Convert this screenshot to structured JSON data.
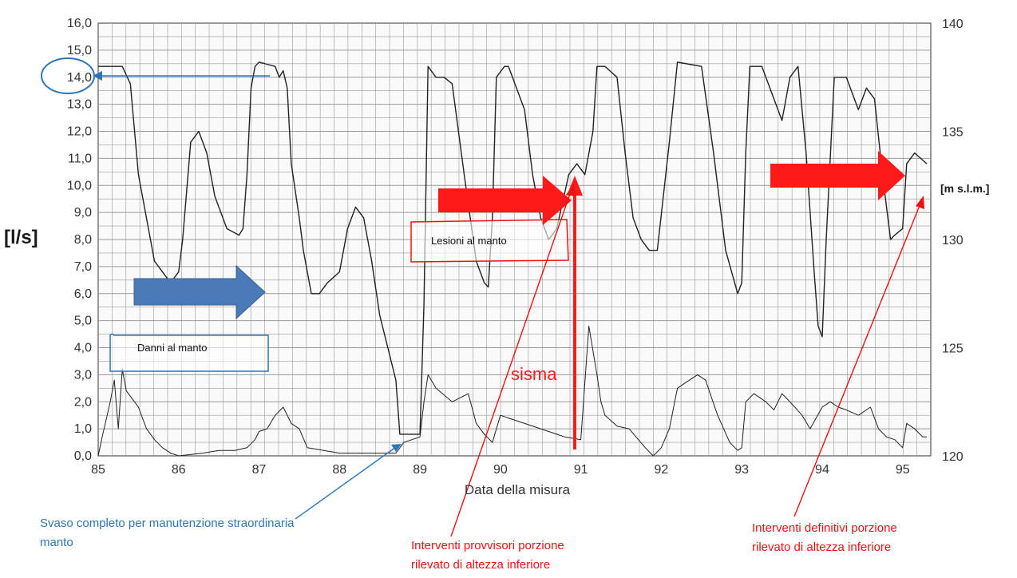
{
  "colors": {
    "blue": "#2e75b6",
    "blue_arrow": "#4a7ab8",
    "red": "#ff1a1a",
    "ink": "#222222",
    "grid": "#9a9a9a"
  },
  "chart_data": {
    "type": "line",
    "xlabel": "Data della misura",
    "ylabel_left": "[l/s]",
    "ylabel_right": "[m s.l.m.]",
    "x_ticks": [
      "85",
      "86",
      "87",
      "88",
      "89",
      "90",
      "91",
      "92",
      "93",
      "94",
      "95"
    ],
    "y_left_ticks": [
      "0,0",
      "1,0",
      "2,0",
      "3,0",
      "4,0",
      "5,0",
      "6,0",
      "7,0",
      "8,0",
      "9,0",
      "10,0",
      "11,0",
      "12,0",
      "13,0",
      "14,0",
      "15,0",
      "16,0"
    ],
    "y_right_ticks": [
      "120",
      "125",
      "130",
      "135",
      "140"
    ],
    "xlim": [
      85,
      95.35
    ],
    "ylim_left": [
      0,
      16
    ],
    "ylim_right": [
      120,
      140
    ],
    "grid": true,
    "series": [
      {
        "axis": "right",
        "x": [
          85.0,
          85.1,
          85.3,
          85.4,
          85.5,
          85.7,
          85.9,
          86.0,
          86.05,
          86.15,
          86.25,
          86.35,
          86.45,
          86.6,
          86.75,
          86.8,
          86.85,
          86.9,
          86.95,
          87.0,
          87.1,
          87.2,
          87.25,
          87.3,
          87.35,
          87.4,
          87.5,
          87.55,
          87.65,
          87.75,
          87.85,
          88.0,
          88.1,
          88.2,
          88.3,
          88.4,
          88.5,
          88.6,
          88.7,
          88.75,
          88.85,
          88.95,
          89.0,
          89.05,
          89.1,
          89.2,
          89.3,
          89.4,
          89.55,
          89.7,
          89.8,
          89.85,
          89.9,
          89.95,
          90.05,
          90.1,
          90.15,
          90.3,
          90.4,
          90.5,
          90.6,
          90.7,
          90.85,
          90.95,
          91.05,
          91.15,
          91.2,
          91.3,
          91.45,
          91.55,
          91.65,
          91.75,
          91.85,
          91.9,
          91.95,
          92.1,
          92.2,
          92.35,
          92.5,
          92.65,
          92.8,
          92.95,
          93.0,
          93.05,
          93.1,
          93.25,
          93.4,
          93.5,
          93.6,
          93.7,
          93.8,
          93.9,
          93.95,
          94.0,
          94.05,
          94.15,
          94.3,
          94.45,
          94.55,
          94.65,
          94.75,
          94.85,
          94.9,
          95.0,
          95.05,
          95.15,
          95.3
        ],
        "y": [
          138.0,
          138.0,
          138.0,
          137.2,
          133.0,
          129.0,
          128.0,
          128.5,
          130.0,
          134.5,
          135.0,
          134.0,
          132.0,
          130.5,
          130.2,
          130.5,
          133.0,
          137.0,
          138.0,
          138.2,
          138.1,
          138.0,
          137.5,
          137.8,
          137.0,
          133.5,
          131.0,
          129.5,
          127.5,
          127.5,
          128.0,
          128.5,
          130.5,
          131.5,
          131.0,
          129.0,
          126.5,
          125.0,
          123.5,
          121.0,
          121.0,
          121.0,
          121.0,
          127.0,
          138.0,
          137.5,
          137.5,
          137.2,
          133.0,
          129.0,
          128.0,
          127.8,
          131.0,
          137.5,
          138.0,
          138.0,
          137.5,
          136.0,
          133.0,
          131.0,
          130.0,
          130.5,
          133.0,
          133.5,
          133.0,
          135.0,
          138.0,
          138.0,
          137.5,
          134.0,
          131.0,
          130.0,
          129.5,
          129.5,
          129.5,
          134.5,
          138.2,
          138.1,
          138.0,
          134.0,
          129.5,
          127.5,
          128.0,
          134.0,
          138.0,
          138.0,
          136.5,
          135.5,
          137.5,
          138.0,
          134.0,
          128.5,
          126.0,
          125.5,
          130.0,
          137.5,
          137.5,
          136.0,
          137.0,
          136.5,
          133.0,
          130.0,
          130.2,
          130.5,
          133.5,
          134.0,
          133.5
        ]
      },
      {
        "axis": "left",
        "x": [
          85.0,
          85.05,
          85.15,
          85.2,
          85.25,
          85.3,
          85.35,
          85.5,
          85.6,
          85.7,
          85.8,
          85.9,
          86.0,
          86.3,
          86.5,
          86.7,
          86.85,
          86.95,
          87.0,
          87.1,
          87.2,
          87.3,
          87.4,
          87.5,
          87.6,
          88.0,
          88.5,
          88.7,
          88.8,
          88.9,
          89.0,
          89.05,
          89.1,
          89.2,
          89.4,
          89.6,
          89.7,
          89.8,
          89.9,
          90.0,
          90.2,
          90.5,
          90.7,
          90.8,
          91.0,
          91.1,
          91.2,
          91.25,
          91.3,
          91.45,
          91.6,
          91.8,
          91.9,
          92.0,
          92.1,
          92.2,
          92.35,
          92.45,
          92.55,
          92.7,
          92.85,
          92.95,
          93.0,
          93.05,
          93.15,
          93.3,
          93.4,
          93.5,
          93.6,
          93.75,
          93.85,
          94.0,
          94.1,
          94.2,
          94.3,
          94.45,
          94.6,
          94.7,
          94.8,
          94.9,
          95.0,
          95.05,
          95.15,
          95.25,
          95.3
        ],
        "y": [
          0.0,
          0.7,
          2.0,
          2.8,
          1.0,
          3.2,
          2.4,
          1.8,
          1.0,
          0.6,
          0.3,
          0.1,
          0.0,
          0.1,
          0.2,
          0.2,
          0.3,
          0.6,
          0.9,
          1.0,
          1.5,
          1.8,
          1.2,
          1.0,
          0.3,
          0.1,
          0.1,
          0.1,
          0.5,
          0.6,
          0.7,
          2.0,
          3.0,
          2.5,
          2.0,
          2.3,
          1.2,
          0.8,
          0.5,
          1.5,
          1.3,
          1.0,
          0.8,
          0.7,
          0.6,
          4.8,
          3.0,
          2.0,
          1.5,
          1.1,
          1.0,
          0.3,
          0.0,
          0.3,
          1.0,
          2.5,
          2.8,
          3.0,
          2.8,
          1.5,
          0.5,
          0.2,
          0.3,
          2.0,
          2.3,
          2.0,
          1.7,
          2.3,
          2.0,
          1.5,
          1.0,
          1.8,
          2.0,
          1.8,
          1.7,
          1.5,
          1.8,
          1.0,
          0.7,
          0.6,
          0.3,
          1.2,
          1.0,
          0.7,
          0.7
        ]
      }
    ],
    "annotations": {
      "danni": "Danni al manto",
      "lesioni": "Lesioni al manto",
      "sisma": "sisma",
      "svaso": [
        "Svaso completo per manutenzione straordinaria",
        "manto"
      ],
      "provvisori": [
        "Interventi provvisori porzione",
        "rilevato di altezza inferiore"
      ],
      "definitivi": [
        "Interventi definitivi porzione",
        "rilevato di altezza inferiore"
      ]
    }
  }
}
